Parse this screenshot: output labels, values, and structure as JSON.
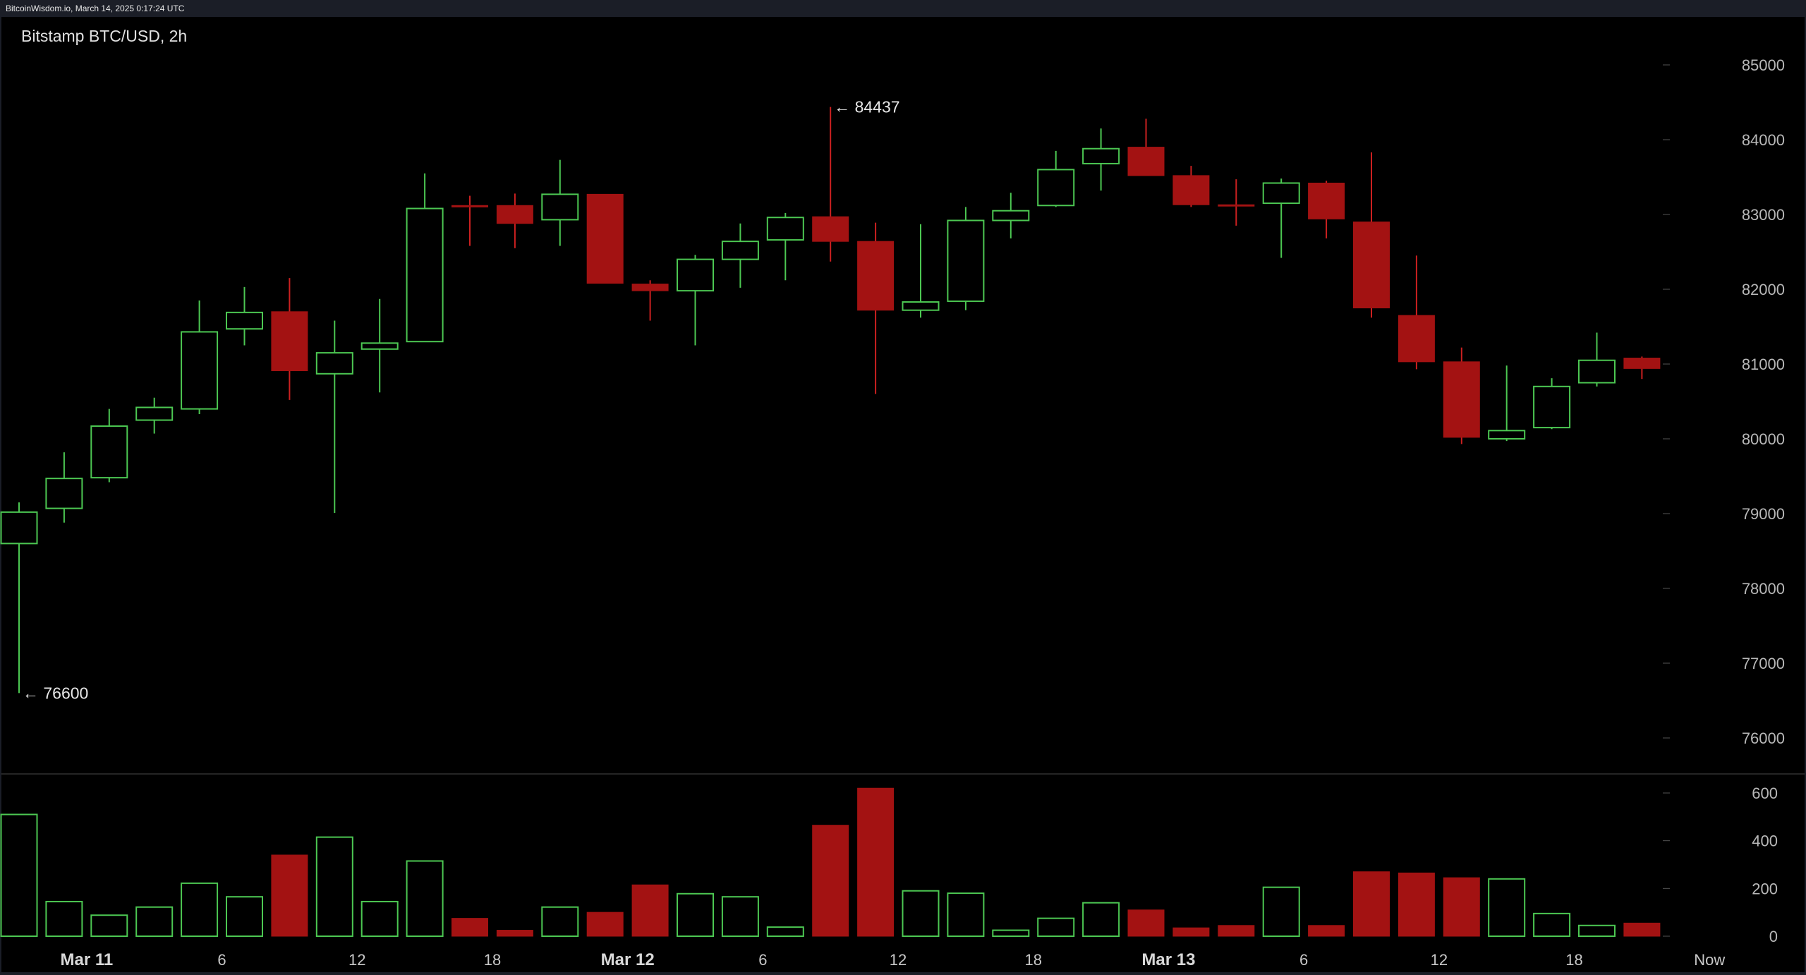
{
  "header": {
    "text": "BitcoinWisdom.io, March 14, 2025 0:17:24 UTC"
  },
  "colors": {
    "up": "#4cc752",
    "down": "#a31212",
    "down_wick": "#cc2020",
    "background": "#000000",
    "frame": "#1b1e27",
    "separator": "#4a4a4a"
  },
  "chart_data": {
    "type": "candlestick",
    "title": "Bitstamp BTC/USD, 2h",
    "price_axis": {
      "ticks": [
        "85000",
        "84000",
        "83000",
        "82000",
        "81000",
        "80000",
        "79000",
        "78000",
        "77000",
        "76000"
      ],
      "range": [
        75500,
        85500
      ]
    },
    "volume_axis": {
      "ticks": [
        "600",
        "400",
        "200",
        "0"
      ],
      "range": [
        0,
        620
      ]
    },
    "x_ticks": [
      {
        "label": "Mar 11",
        "bold": true,
        "after_candle": 1.5
      },
      {
        "label": "6",
        "bold": false,
        "after_candle": 4.5
      },
      {
        "label": "12",
        "bold": false,
        "after_candle": 7.5
      },
      {
        "label": "18",
        "bold": false,
        "after_candle": 10.5
      },
      {
        "label": "Mar 12",
        "bold": true,
        "after_candle": 13.5
      },
      {
        "label": "6",
        "bold": false,
        "after_candle": 16.5
      },
      {
        "label": "12",
        "bold": false,
        "after_candle": 19.5
      },
      {
        "label": "18",
        "bold": false,
        "after_candle": 22.5
      },
      {
        "label": "Mar 13",
        "bold": true,
        "after_candle": 25.5
      },
      {
        "label": "6",
        "bold": false,
        "after_candle": 28.5
      },
      {
        "label": "12",
        "bold": false,
        "after_candle": 31.5
      },
      {
        "label": "18",
        "bold": false,
        "after_candle": 34.5
      },
      {
        "label": "Now",
        "bold": false,
        "after_candle": 37.5
      }
    ],
    "annotations": [
      {
        "text": "← 84437",
        "candle": 18,
        "price": 84437
      },
      {
        "text": "← 76600",
        "candle": 0,
        "price": 76600
      }
    ],
    "candles": [
      {
        "o": 78600,
        "h": 79150,
        "l": 76600,
        "c": 79020,
        "v": 510
      },
      {
        "o": 79070,
        "h": 79820,
        "l": 78880,
        "c": 79470,
        "v": 145
      },
      {
        "o": 79480,
        "h": 80400,
        "l": 79420,
        "c": 80170,
        "v": 88
      },
      {
        "o": 80250,
        "h": 80550,
        "l": 80070,
        "c": 80420,
        "v": 122
      },
      {
        "o": 80400,
        "h": 81850,
        "l": 80330,
        "c": 81430,
        "v": 222
      },
      {
        "o": 81470,
        "h": 82030,
        "l": 81250,
        "c": 81690,
        "v": 165
      },
      {
        "o": 81700,
        "h": 82150,
        "l": 80520,
        "c": 80910,
        "v": 340
      },
      {
        "o": 80870,
        "h": 81580,
        "l": 79010,
        "c": 81150,
        "v": 415
      },
      {
        "o": 81200,
        "h": 81870,
        "l": 80620,
        "c": 81280,
        "v": 145
      },
      {
        "o": 81300,
        "h": 83550,
        "l": 81300,
        "c": 83080,
        "v": 315
      },
      {
        "o": 83120,
        "h": 83250,
        "l": 82580,
        "c": 83100,
        "v": 75
      },
      {
        "o": 83120,
        "h": 83280,
        "l": 82550,
        "c": 82880,
        "v": 25
      },
      {
        "o": 82930,
        "h": 83730,
        "l": 82580,
        "c": 83270,
        "v": 122
      },
      {
        "o": 83270,
        "h": 83270,
        "l": 82080,
        "c": 82080,
        "v": 100
      },
      {
        "o": 82070,
        "h": 82120,
        "l": 81580,
        "c": 81980,
        "v": 215
      },
      {
        "o": 81980,
        "h": 82460,
        "l": 81250,
        "c": 82400,
        "v": 178
      },
      {
        "o": 82400,
        "h": 82880,
        "l": 82020,
        "c": 82640,
        "v": 165
      },
      {
        "o": 82660,
        "h": 83020,
        "l": 82120,
        "c": 82960,
        "v": 38
      },
      {
        "o": 82970,
        "h": 84437,
        "l": 82370,
        "c": 82640,
        "v": 465
      },
      {
        "o": 82640,
        "h": 82890,
        "l": 80600,
        "c": 81720,
        "v": 620
      },
      {
        "o": 81720,
        "h": 82870,
        "l": 81620,
        "c": 81830,
        "v": 190
      },
      {
        "o": 81840,
        "h": 83100,
        "l": 81720,
        "c": 82920,
        "v": 180
      },
      {
        "o": 82920,
        "h": 83290,
        "l": 82680,
        "c": 83050,
        "v": 25
      },
      {
        "o": 83120,
        "h": 83850,
        "l": 83100,
        "c": 83600,
        "v": 75
      },
      {
        "o": 83680,
        "h": 84150,
        "l": 83320,
        "c": 83880,
        "v": 140
      },
      {
        "o": 83900,
        "h": 84280,
        "l": 83520,
        "c": 83520,
        "v": 110
      },
      {
        "o": 83520,
        "h": 83650,
        "l": 83100,
        "c": 83130,
        "v": 35
      },
      {
        "o": 83130,
        "h": 83470,
        "l": 82850,
        "c": 83120,
        "v": 45
      },
      {
        "o": 83150,
        "h": 83480,
        "l": 82420,
        "c": 83420,
        "v": 205
      },
      {
        "o": 83420,
        "h": 83450,
        "l": 82680,
        "c": 82940,
        "v": 45
      },
      {
        "o": 82900,
        "h": 83830,
        "l": 81620,
        "c": 81750,
        "v": 270
      },
      {
        "o": 81650,
        "h": 82450,
        "l": 80930,
        "c": 81030,
        "v": 265
      },
      {
        "o": 81030,
        "h": 81220,
        "l": 79930,
        "c": 80020,
        "v": 245
      },
      {
        "o": 80000,
        "h": 80980,
        "l": 79970,
        "c": 80110,
        "v": 240
      },
      {
        "o": 80150,
        "h": 80810,
        "l": 80130,
        "c": 80700,
        "v": 95
      },
      {
        "o": 80750,
        "h": 81420,
        "l": 80700,
        "c": 81050,
        "v": 45
      },
      {
        "o": 81080,
        "h": 81100,
        "l": 80800,
        "c": 80940,
        "v": 55
      }
    ]
  }
}
